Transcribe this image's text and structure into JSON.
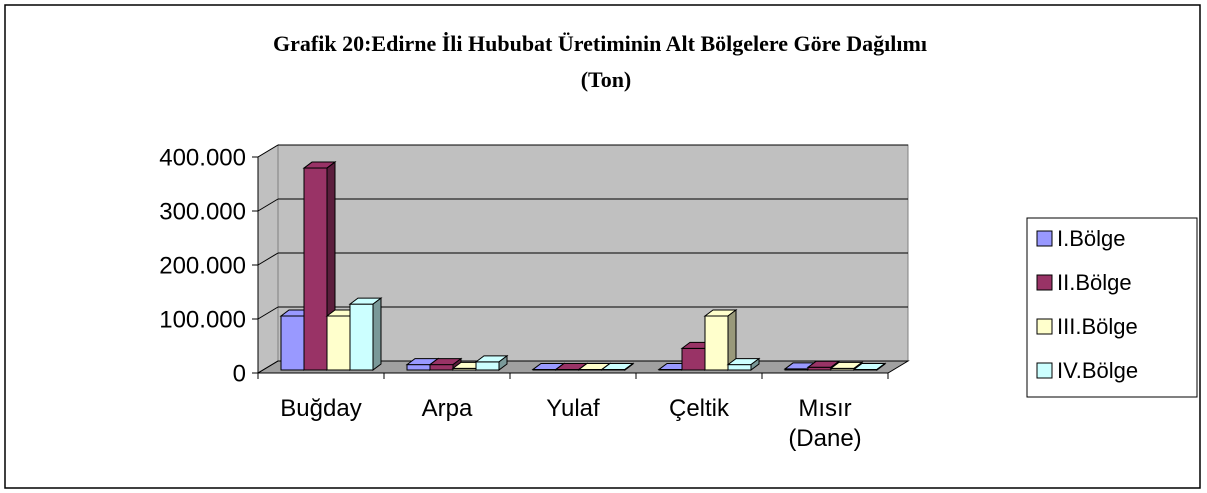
{
  "chart_data": {
    "type": "bar3d",
    "title": "Grafik 20:Edirne İli Hububat Üretiminin Alt Bölgelere Göre Dağılımı",
    "subtitle": "(Ton)",
    "categories": [
      "Buğday",
      "Arpa",
      "Yulaf",
      "Çeltik",
      "Mısır (Dane)"
    ],
    "series": [
      {
        "name": "I.Bölge",
        "color": "#9999ff",
        "values": [
          100000,
          10000,
          1000,
          1000,
          2000
        ]
      },
      {
        "name": "II.Bölge",
        "color": "#993366",
        "values": [
          374000,
          10000,
          1000,
          40000,
          5000
        ]
      },
      {
        "name": "III.Bölge",
        "color": "#ffffcc",
        "values": [
          100000,
          3000,
          1000,
          100000,
          3000
        ]
      },
      {
        "name": "IV.Bölge",
        "color": "#ccffff",
        "values": [
          122000,
          15000,
          1000,
          10000,
          1000
        ]
      }
    ],
    "ylim": [
      0,
      400000
    ],
    "yticks": [
      {
        "value": 0,
        "label": "0"
      },
      {
        "value": 100000,
        "label": "100.000"
      },
      {
        "value": 200000,
        "label": "200.000"
      },
      {
        "value": 300000,
        "label": "300.000"
      },
      {
        "value": 400000,
        "label": "400.000"
      }
    ],
    "grid": true,
    "legend": "right"
  }
}
